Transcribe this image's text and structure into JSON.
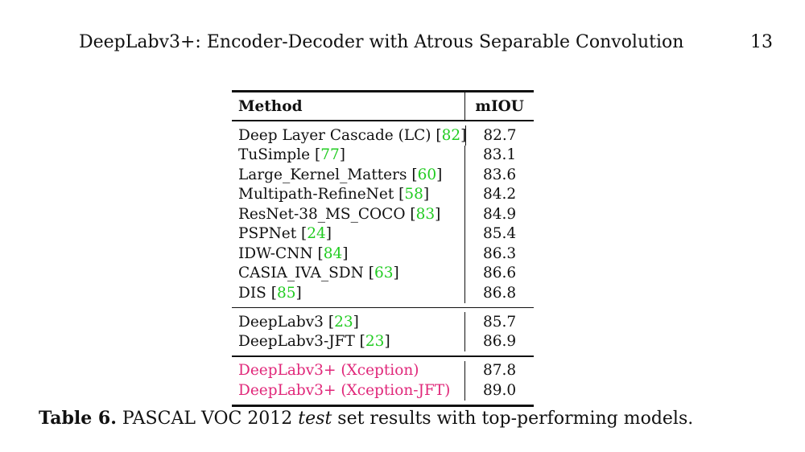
{
  "running_head": {
    "title": "DeepLabv3+: Encoder-Decoder with Atrous Separable Convolution",
    "page_number": "13"
  },
  "table": {
    "headers": {
      "method": "Method",
      "miou": "mIOU"
    },
    "group1": [
      {
        "method": "Deep Layer Cascade (LC)",
        "ref": "82",
        "miou": "82.7"
      },
      {
        "method": "TuSimple",
        "ref": "77",
        "miou": "83.1"
      },
      {
        "method": "Large_Kernel_Matters",
        "ref": "60",
        "miou": "83.6"
      },
      {
        "method": "Multipath-RefineNet",
        "ref": "58",
        "miou": "84.2"
      },
      {
        "method": "ResNet-38_MS_COCO",
        "ref": "83",
        "miou": "84.9"
      },
      {
        "method": "PSPNet",
        "ref": "24",
        "miou": "85.4"
      },
      {
        "method": "IDW-CNN",
        "ref": "84",
        "miou": "86.3"
      },
      {
        "method": "CASIA_IVA_SDN",
        "ref": "63",
        "miou": "86.6"
      },
      {
        "method": "DIS",
        "ref": "85",
        "miou": "86.8"
      }
    ],
    "group2": [
      {
        "method": "DeepLabv3",
        "ref": "23",
        "miou": "85.7"
      },
      {
        "method": "DeepLabv3-JFT",
        "ref": "23",
        "miou": "86.9"
      }
    ],
    "group3": [
      {
        "method": "DeepLabv3+ (Xception)",
        "miou": "87.8"
      },
      {
        "method": "DeepLabv3+ (Xception-JFT)",
        "miou": "89.0"
      }
    ],
    "colors": {
      "reference": "#22cc22",
      "ours": "#e0287a"
    }
  },
  "caption": {
    "label": "Table 6.",
    "text_before": " PASCAL VOC 2012 ",
    "italic": "test",
    "text_after": " set results with top-performing models."
  }
}
